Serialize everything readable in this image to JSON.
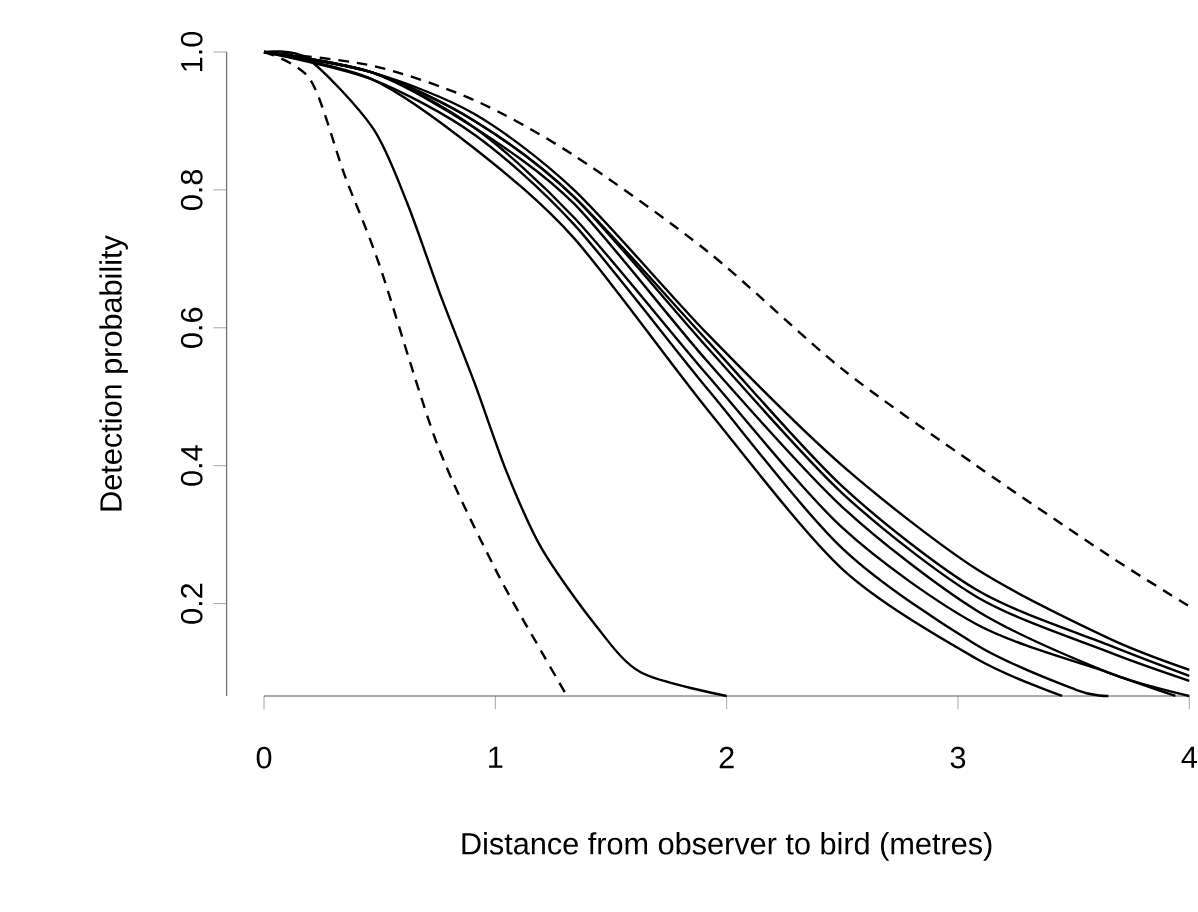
{
  "chart_data": {
    "type": "line",
    "xlabel": "Distance from observer to bird (metres)",
    "ylabel": "Detection probability",
    "xlim": [
      0,
      4
    ],
    "ylim": [
      0.066,
      1.0
    ],
    "xticks": [
      0,
      1,
      2,
      3,
      4
    ],
    "yticks": [
      0.2,
      0.4,
      0.6,
      {
        "value": 0.8,
        "label": "0.8"
      },
      {
        "value": 1.0,
        "label": "1.0"
      }
    ],
    "series": [
      {
        "color": "#000000",
        "line_style": "dashed",
        "x": [
          0,
          0.2,
          0.35,
          0.5,
          0.75,
          1.0,
          1.2,
          1.31
        ],
        "values": [
          1,
          0.96,
          0.82,
          0.69,
          0.43,
          0.25,
          0.13,
          0.066
        ]
      },
      {
        "color": "#000000",
        "line_style": "solid",
        "x": [
          0,
          0.19,
          0.47,
          0.62,
          0.76,
          0.91,
          1.05,
          1.2,
          1.43,
          1.63,
          2.0
        ],
        "values": [
          1,
          0.99,
          0.89,
          0.78,
          0.65,
          0.52,
          0.39,
          0.28,
          0.17,
          0.1,
          0.066
        ]
      },
      {
        "color": "#000000",
        "line_style": "solid",
        "x": [
          0,
          0.47,
          0.91,
          1.34,
          1.92,
          2.5,
          3.08,
          3.45
        ],
        "values": [
          1,
          0.96,
          0.86,
          0.73,
          0.48,
          0.25,
          0.12,
          0.066
        ]
      },
      {
        "color": "#000000",
        "line_style": "solid",
        "x": [
          0,
          0.47,
          0.91,
          1.34,
          1.92,
          2.5,
          3.08,
          3.51,
          3.65
        ],
        "values": [
          1,
          0.96,
          0.88,
          0.75,
          0.51,
          0.28,
          0.14,
          0.075,
          0.066
        ]
      },
      {
        "color": "#000000",
        "line_style": "solid",
        "x": [
          0,
          0.47,
          0.91,
          1.34,
          1.92,
          2.5,
          3.08,
          3.65,
          3.94
        ],
        "values": [
          1,
          0.97,
          0.89,
          0.76,
          0.53,
          0.31,
          0.17,
          0.1,
          0.066
        ]
      },
      {
        "color": "#000000",
        "line_style": "solid",
        "x": [
          0,
          0.47,
          0.91,
          1.34,
          1.92,
          2.5,
          3.08,
          3.65,
          4.0
        ],
        "values": [
          1,
          0.97,
          0.89,
          0.78,
          0.55,
          0.34,
          0.19,
          0.1,
          0.066
        ]
      },
      {
        "color": "#000000",
        "line_style": "solid",
        "x": [
          0,
          0.47,
          0.91,
          1.34,
          1.92,
          2.5,
          3.08,
          3.65,
          4.0
        ],
        "values": [
          1,
          0.97,
          0.9,
          0.79,
          0.57,
          0.36,
          0.21,
          0.13,
          0.088
        ]
      },
      {
        "color": "#000000",
        "line_style": "solid",
        "x": [
          0,
          0.47,
          0.91,
          1.34,
          1.92,
          2.5,
          3.08,
          3.65,
          4.0
        ],
        "values": [
          1,
          0.97,
          0.9,
          0.79,
          0.58,
          0.37,
          0.22,
          0.14,
          0.095
        ]
      },
      {
        "color": "#000000",
        "line_style": "solid",
        "x": [
          0,
          0.47,
          0.91,
          1.34,
          1.92,
          2.5,
          3.08,
          3.65,
          4.0
        ],
        "values": [
          1,
          0.97,
          0.91,
          0.8,
          0.59,
          0.4,
          0.25,
          0.15,
          0.104
        ]
      },
      {
        "color": "#000000",
        "line_style": "dashed",
        "x": [
          0,
          0.47,
          0.91,
          1.34,
          1.92,
          2.5,
          3.08,
          3.65,
          4.0
        ],
        "values": [
          1,
          0.98,
          0.93,
          0.85,
          0.71,
          0.54,
          0.4,
          0.27,
          0.196
        ]
      }
    ]
  }
}
